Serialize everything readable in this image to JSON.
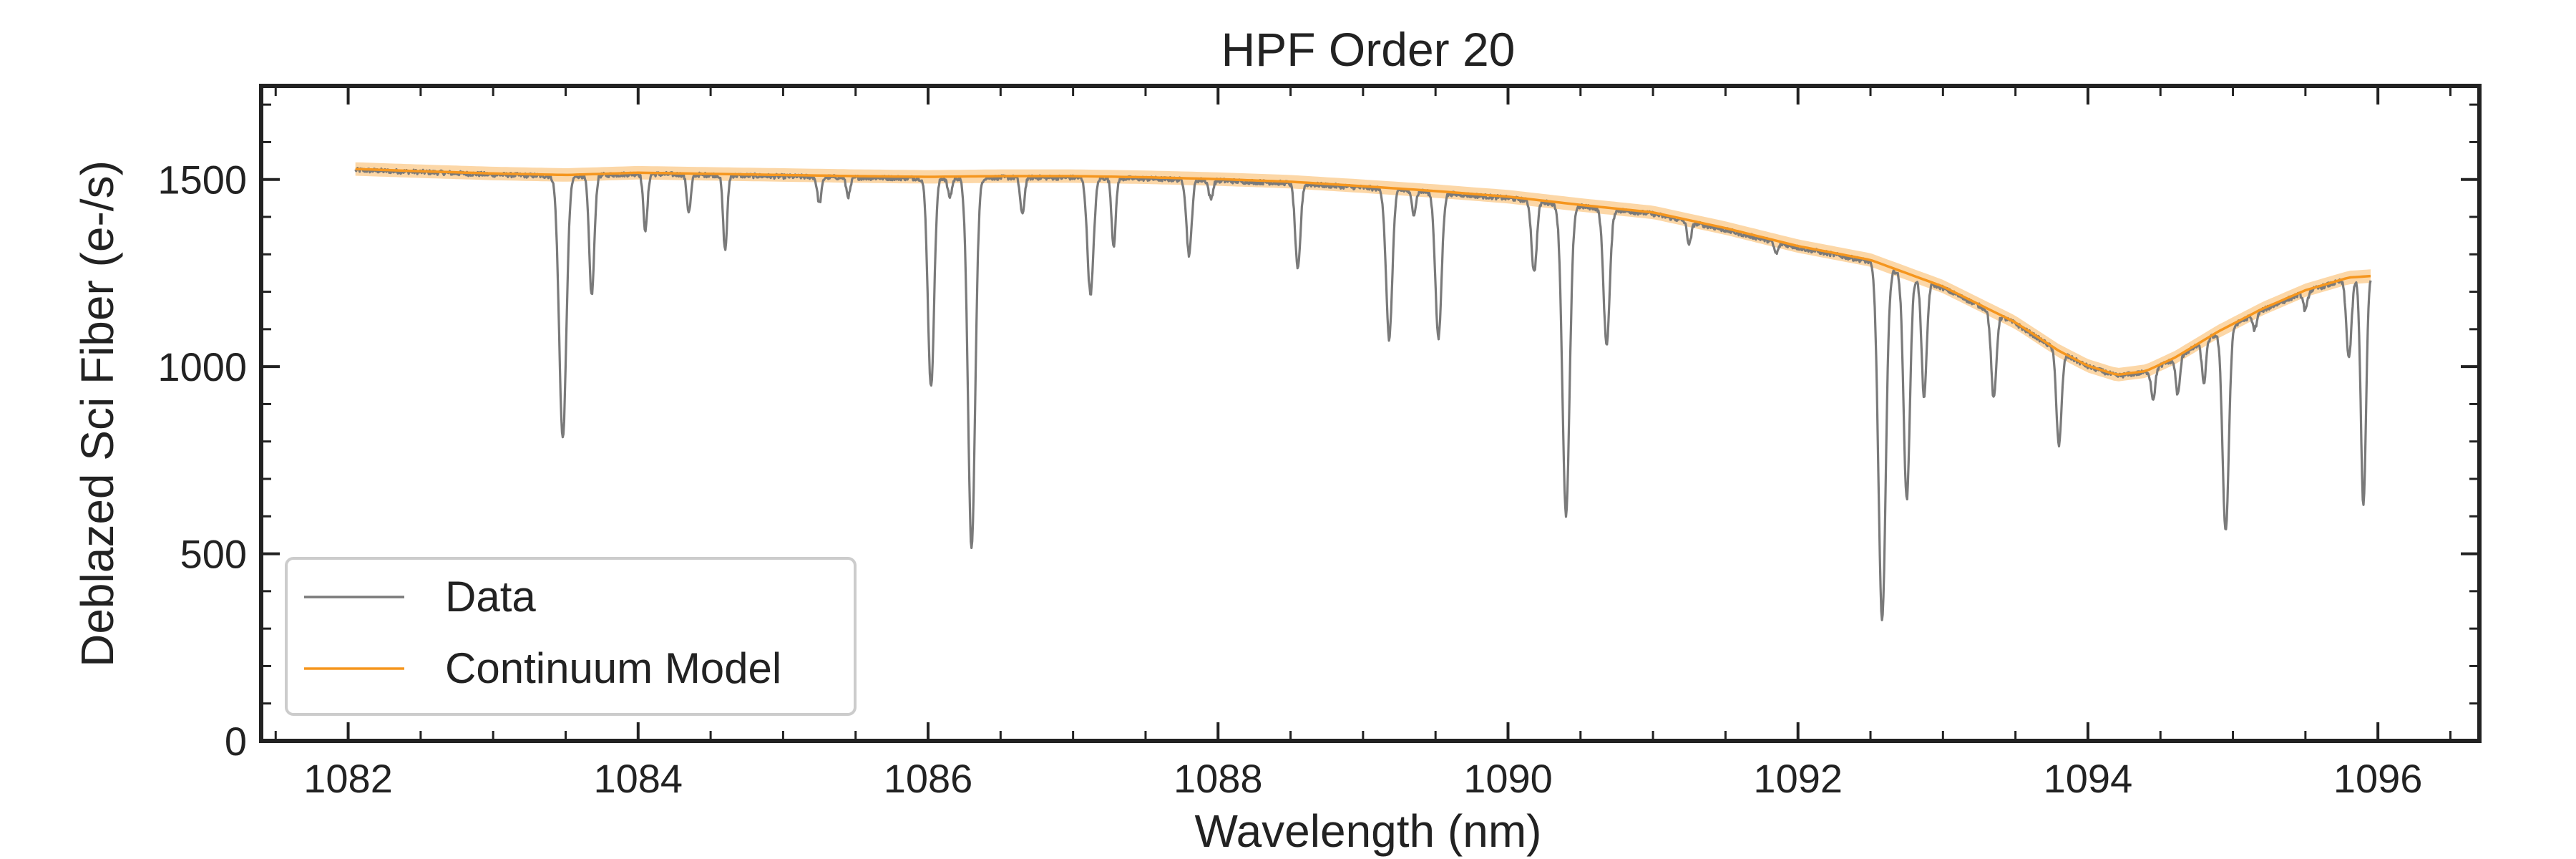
{
  "chart_data": {
    "type": "line",
    "title": "HPF Order 20",
    "xlabel": "Wavelength (nm)",
    "ylabel": "Deblazed Sci Fiber (e-/s)",
    "xlim": [
      1081.4,
      1096.7
    ],
    "ylim": [
      0,
      1750
    ],
    "xticks": [
      1082,
      1084,
      1086,
      1088,
      1090,
      1092,
      1094,
      1096
    ],
    "xtick_labels": [
      "1082",
      "1084",
      "1086",
      "1088",
      "1090",
      "1092",
      "1094",
      "1096"
    ],
    "yticks": [
      0,
      500,
      1000,
      1500
    ],
    "ytick_labels": [
      "0",
      "500",
      "1000",
      "1500"
    ],
    "grid": false,
    "legend_position": "lower-left",
    "colors": {
      "data": "#7a7a7a",
      "model": "#f5961e",
      "model_band": "#fbc98a",
      "axes": "#222222"
    },
    "series": [
      {
        "name": "Data",
        "continuum_points": [
          [
            1082.05,
            1525
          ],
          [
            1082.5,
            1520
          ],
          [
            1083,
            1513
          ],
          [
            1083.5,
            1508
          ],
          [
            1084,
            1515
          ],
          [
            1084.5,
            1512
          ],
          [
            1085,
            1508
          ],
          [
            1085.5,
            1505
          ],
          [
            1086,
            1503
          ],
          [
            1086.5,
            1505
          ],
          [
            1087,
            1505
          ],
          [
            1087.5,
            1502
          ],
          [
            1088,
            1497
          ],
          [
            1088.5,
            1490
          ],
          [
            1089,
            1478
          ],
          [
            1089.5,
            1465
          ],
          [
            1090,
            1450
          ],
          [
            1090.5,
            1428
          ],
          [
            1091,
            1408
          ],
          [
            1091.5,
            1365
          ],
          [
            1092,
            1318
          ],
          [
            1092.5,
            1280
          ],
          [
            1093,
            1210
          ],
          [
            1093.5,
            1115
          ],
          [
            1093.8,
            1040
          ],
          [
            1094,
            1000
          ],
          [
            1094.2,
            975
          ],
          [
            1094.4,
            985
          ],
          [
            1094.6,
            1020
          ],
          [
            1094.9,
            1090
          ],
          [
            1095.2,
            1150
          ],
          [
            1095.5,
            1200
          ],
          [
            1095.8,
            1235
          ],
          [
            1095.95,
            1240
          ]
        ],
        "absorption_lines": [
          {
            "center": 1083.48,
            "depth": 700,
            "width": 0.035
          },
          {
            "center": 1083.68,
            "depth": 320,
            "width": 0.025
          },
          {
            "center": 1084.05,
            "depth": 150,
            "width": 0.02
          },
          {
            "center": 1084.35,
            "depth": 100,
            "width": 0.02
          },
          {
            "center": 1084.6,
            "depth": 200,
            "width": 0.02
          },
          {
            "center": 1085.25,
            "depth": 70,
            "width": 0.02
          },
          {
            "center": 1085.45,
            "depth": 50,
            "width": 0.02
          },
          {
            "center": 1086.02,
            "depth": 560,
            "width": 0.03
          },
          {
            "center": 1086.15,
            "depth": 50,
            "width": 0.02
          },
          {
            "center": 1086.3,
            "depth": 990,
            "width": 0.035
          },
          {
            "center": 1086.65,
            "depth": 100,
            "width": 0.02
          },
          {
            "center": 1087.12,
            "depth": 310,
            "width": 0.03
          },
          {
            "center": 1087.28,
            "depth": 180,
            "width": 0.02
          },
          {
            "center": 1087.8,
            "depth": 200,
            "width": 0.025
          },
          {
            "center": 1087.95,
            "depth": 50,
            "width": 0.02
          },
          {
            "center": 1088.55,
            "depth": 230,
            "width": 0.025
          },
          {
            "center": 1089.18,
            "depth": 400,
            "width": 0.03
          },
          {
            "center": 1089.35,
            "depth": 60,
            "width": 0.02
          },
          {
            "center": 1089.52,
            "depth": 390,
            "width": 0.03
          },
          {
            "center": 1090.18,
            "depth": 190,
            "width": 0.025
          },
          {
            "center": 1090.4,
            "depth": 830,
            "width": 0.035
          },
          {
            "center": 1090.68,
            "depth": 360,
            "width": 0.03
          },
          {
            "center": 1091.25,
            "depth": 60,
            "width": 0.02
          },
          {
            "center": 1091.85,
            "depth": 30,
            "width": 0.02
          },
          {
            "center": 1092.58,
            "depth": 950,
            "width": 0.035
          },
          {
            "center": 1092.75,
            "depth": 600,
            "width": 0.03
          },
          {
            "center": 1092.87,
            "depth": 310,
            "width": 0.025
          },
          {
            "center": 1093.35,
            "depth": 230,
            "width": 0.025
          },
          {
            "center": 1093.8,
            "depth": 250,
            "width": 0.025
          },
          {
            "center": 1094.45,
            "depth": 80,
            "width": 0.02
          },
          {
            "center": 1094.62,
            "depth": 100,
            "width": 0.02
          },
          {
            "center": 1094.8,
            "depth": 110,
            "width": 0.02
          },
          {
            "center": 1094.95,
            "depth": 540,
            "width": 0.03
          },
          {
            "center": 1095.15,
            "depth": 40,
            "width": 0.02
          },
          {
            "center": 1095.5,
            "depth": 50,
            "width": 0.02
          },
          {
            "center": 1095.8,
            "depth": 210,
            "width": 0.025
          },
          {
            "center": 1095.9,
            "depth": 610,
            "width": 0.025
          }
        ],
        "noise_amplitude": 6
      },
      {
        "name": "Continuum Model",
        "points": [
          [
            1082.05,
            1528
          ],
          [
            1082.5,
            1522
          ],
          [
            1083,
            1516
          ],
          [
            1083.5,
            1512
          ],
          [
            1084,
            1518
          ],
          [
            1084.5,
            1515
          ],
          [
            1085,
            1512
          ],
          [
            1085.5,
            1509
          ],
          [
            1086,
            1507
          ],
          [
            1086.5,
            1509
          ],
          [
            1087,
            1509
          ],
          [
            1087.5,
            1506
          ],
          [
            1088,
            1501
          ],
          [
            1088.5,
            1494
          ],
          [
            1089,
            1482
          ],
          [
            1089.5,
            1469
          ],
          [
            1090,
            1454
          ],
          [
            1090.5,
            1432
          ],
          [
            1091,
            1412
          ],
          [
            1091.5,
            1370
          ],
          [
            1092,
            1322
          ],
          [
            1092.5,
            1285
          ],
          [
            1093,
            1214
          ],
          [
            1093.5,
            1118
          ],
          [
            1093.8,
            1042
          ],
          [
            1094,
            1002
          ],
          [
            1094.2,
            978
          ],
          [
            1094.4,
            988
          ],
          [
            1094.6,
            1024
          ],
          [
            1094.9,
            1094
          ],
          [
            1095.2,
            1154
          ],
          [
            1095.5,
            1204
          ],
          [
            1095.8,
            1238
          ],
          [
            1095.95,
            1242
          ]
        ],
        "band_halfwidth": 18
      }
    ]
  }
}
